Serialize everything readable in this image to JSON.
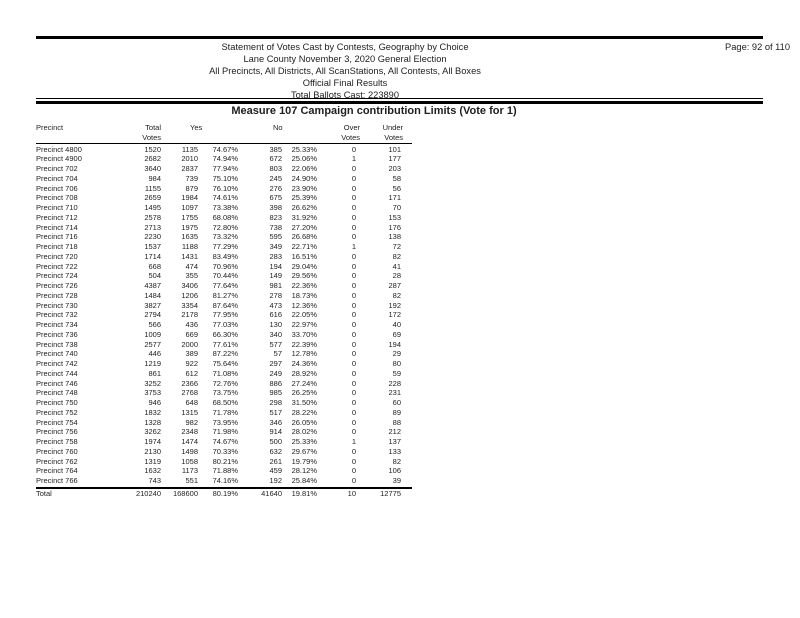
{
  "report": {
    "header_lines": [
      "Statement of Votes Cast by Contests, Geography by Choice",
      "Lane County November 3, 2020 General Election",
      "All Precincts, All Districts, All ScanStations, All Contests, All Boxes",
      "Official Final Results",
      "Total Ballots Cast: 223890"
    ],
    "page_label": "Page: 92 of 110",
    "contest_title": "Measure 107 Campaign contribution Limits (Vote for 1)"
  },
  "table": {
    "headers": {
      "precinct": "Precinct",
      "total_top": "Total",
      "total_bottom": "Votes",
      "yes": "Yes",
      "no": "No",
      "over_top": "Over",
      "over_bottom": "Votes",
      "under_top": "Under",
      "under_bottom": "Votes"
    },
    "rows": [
      [
        "Precinct 4800",
        "1520",
        "1135",
        "74.67%",
        "385",
        "25.33%",
        "0",
        "101"
      ],
      [
        "Precinct 4900",
        "2682",
        "2010",
        "74.94%",
        "672",
        "25.06%",
        "1",
        "177"
      ],
      [
        "Precinct 702",
        "3640",
        "2837",
        "77.94%",
        "803",
        "22.06%",
        "0",
        "203"
      ],
      [
        "Precinct 704",
        "984",
        "739",
        "75.10%",
        "245",
        "24.90%",
        "0",
        "58"
      ],
      [
        "Precinct 706",
        "1155",
        "879",
        "76.10%",
        "276",
        "23.90%",
        "0",
        "56"
      ],
      [
        "Precinct 708",
        "2659",
        "1984",
        "74.61%",
        "675",
        "25.39%",
        "0",
        "171"
      ],
      [
        "Precinct 710",
        "1495",
        "1097",
        "73.38%",
        "398",
        "26.62%",
        "0",
        "70"
      ],
      [
        "Precinct 712",
        "2578",
        "1755",
        "68.08%",
        "823",
        "31.92%",
        "0",
        "153"
      ],
      [
        "Precinct 714",
        "2713",
        "1975",
        "72.80%",
        "738",
        "27.20%",
        "0",
        "176"
      ],
      [
        "Precinct 716",
        "2230",
        "1635",
        "73.32%",
        "595",
        "26.68%",
        "0",
        "138"
      ],
      [
        "Precinct 718",
        "1537",
        "1188",
        "77.29%",
        "349",
        "22.71%",
        "1",
        "72"
      ],
      [
        "Precinct 720",
        "1714",
        "1431",
        "83.49%",
        "283",
        "16.51%",
        "0",
        "82"
      ],
      [
        "Precinct 722",
        "668",
        "474",
        "70.96%",
        "194",
        "29.04%",
        "0",
        "41"
      ],
      [
        "Precinct 724",
        "504",
        "355",
        "70.44%",
        "149",
        "29.56%",
        "0",
        "28"
      ],
      [
        "Precinct 726",
        "4387",
        "3406",
        "77.64%",
        "981",
        "22.36%",
        "0",
        "287"
      ],
      [
        "Precinct 728",
        "1484",
        "1206",
        "81.27%",
        "278",
        "18.73%",
        "0",
        "82"
      ],
      [
        "Precinct 730",
        "3827",
        "3354",
        "87.64%",
        "473",
        "12.36%",
        "0",
        "192"
      ],
      [
        "Precinct 732",
        "2794",
        "2178",
        "77.95%",
        "616",
        "22.05%",
        "0",
        "172"
      ],
      [
        "Precinct 734",
        "566",
        "436",
        "77.03%",
        "130",
        "22.97%",
        "0",
        "40"
      ],
      [
        "Precinct 736",
        "1009",
        "669",
        "66.30%",
        "340",
        "33.70%",
        "0",
        "69"
      ],
      [
        "Precinct 738",
        "2577",
        "2000",
        "77.61%",
        "577",
        "22.39%",
        "0",
        "194"
      ],
      [
        "Precinct 740",
        "446",
        "389",
        "87.22%",
        "57",
        "12.78%",
        "0",
        "29"
      ],
      [
        "Precinct 742",
        "1219",
        "922",
        "75.64%",
        "297",
        "24.36%",
        "0",
        "80"
      ],
      [
        "Precinct 744",
        "861",
        "612",
        "71.08%",
        "249",
        "28.92%",
        "0",
        "59"
      ],
      [
        "Precinct 746",
        "3252",
        "2366",
        "72.76%",
        "886",
        "27.24%",
        "0",
        "228"
      ],
      [
        "Precinct 748",
        "3753",
        "2768",
        "73.75%",
        "985",
        "26.25%",
        "0",
        "231"
      ],
      [
        "Precinct 750",
        "946",
        "648",
        "68.50%",
        "298",
        "31.50%",
        "0",
        "60"
      ],
      [
        "Precinct 752",
        "1832",
        "1315",
        "71.78%",
        "517",
        "28.22%",
        "0",
        "89"
      ],
      [
        "Precinct 754",
        "1328",
        "982",
        "73.95%",
        "346",
        "26.05%",
        "0",
        "88"
      ],
      [
        "Precinct 756",
        "3262",
        "2348",
        "71.98%",
        "914",
        "28.02%",
        "0",
        "212"
      ],
      [
        "Precinct 758",
        "1974",
        "1474",
        "74.67%",
        "500",
        "25.33%",
        "1",
        "137"
      ],
      [
        "Precinct 760",
        "2130",
        "1498",
        "70.33%",
        "632",
        "29.67%",
        "0",
        "133"
      ],
      [
        "Precinct 762",
        "1319",
        "1058",
        "80.21%",
        "261",
        "19.79%",
        "0",
        "82"
      ],
      [
        "Precinct 764",
        "1632",
        "1173",
        "71.88%",
        "459",
        "28.12%",
        "0",
        "106"
      ],
      [
        "Precinct 766",
        "743",
        "551",
        "74.16%",
        "192",
        "25.84%",
        "0",
        "39"
      ]
    ],
    "total_row": [
      "Total",
      "210240",
      "168600",
      "80.19%",
      "41640",
      "19.81%",
      "10",
      "12775"
    ]
  }
}
